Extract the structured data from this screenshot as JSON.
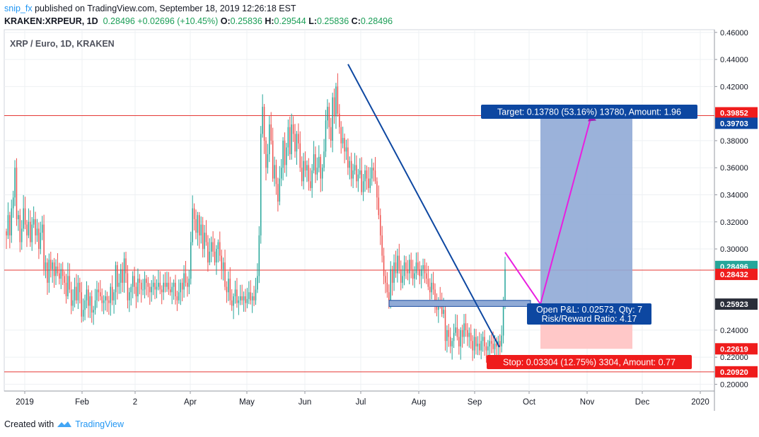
{
  "header": {
    "publisher": "snip_fx",
    "published_text": "published on TradingView.com, September 18, 2019 12:26:18 EST",
    "symbol": "KRAKEN:XRPEUR, 1D",
    "last": "0.28496",
    "change": "+0.02696 (+10.45%)",
    "o_label": "O:",
    "o_value": "0.25836",
    "h_label": "H:",
    "h_value": "0.29544",
    "l_label": "L:",
    "l_value": "0.25836",
    "c_label": "C:",
    "c_value": "0.28496"
  },
  "footer": {
    "created_with": "Created with",
    "brand": "TradingView"
  },
  "colors": {
    "up": "#26a69a",
    "down": "#ef5350",
    "hline": "#e53935",
    "trend": "#0d47a1",
    "projection": "#e91ee0",
    "target_zone": "#90aad6",
    "stop_zone": "#ffc8c8",
    "label_blue": "#0d47a1",
    "label_red": "#ef1c1c",
    "grid": "#eef0f3"
  },
  "chart_data": {
    "type": "candlestick",
    "title": "XRP / Euro, 1D, KRAKEN",
    "x_ticks": [
      "2019",
      "Feb",
      "2",
      "Apr",
      "May",
      "Jun",
      "Jul",
      "Aug",
      "Sep",
      "Oct",
      "Nov",
      "Dec",
      "2020"
    ],
    "y_ticks": [
      "0.46000",
      "0.44000",
      "0.42000",
      "0.38000",
      "0.36000",
      "0.34000",
      "0.32000",
      "0.30000",
      "0.24000",
      "0.22000",
      "0.20000"
    ],
    "ylim": [
      0.195,
      0.462
    ],
    "candles_close": [
      0.31,
      0.325,
      0.31,
      0.33,
      0.338,
      0.36,
      0.322,
      0.325,
      0.305,
      0.315,
      0.33,
      0.318,
      0.31,
      0.32,
      0.305,
      0.318,
      0.322,
      0.31,
      0.315,
      0.3,
      0.312,
      0.318,
      0.285,
      0.29,
      0.275,
      0.292,
      0.285,
      0.29,
      0.28,
      0.287,
      0.282,
      0.278,
      0.285,
      0.28,
      0.275,
      0.265,
      0.28,
      0.27,
      0.258,
      0.262,
      0.272,
      0.262,
      0.275,
      0.268,
      0.25,
      0.255,
      0.262,
      0.27,
      0.258,
      0.265,
      0.253,
      0.255,
      0.262,
      0.27,
      0.268,
      0.265,
      0.26,
      0.262,
      0.265,
      0.262,
      0.26,
      0.272,
      0.262,
      0.268,
      0.288,
      0.272,
      0.275,
      0.285,
      0.275,
      0.293,
      0.282,
      0.262,
      0.268,
      0.272,
      0.28,
      0.272,
      0.265,
      0.278,
      0.275,
      0.27,
      0.27,
      0.278,
      0.275,
      0.272,
      0.268,
      0.272,
      0.275,
      0.27,
      0.272,
      0.275,
      0.27,
      0.268,
      0.275,
      0.272,
      0.275,
      0.27,
      0.268,
      0.272,
      0.275,
      0.265,
      0.262,
      0.268,
      0.275,
      0.27,
      0.282,
      0.275,
      0.272,
      0.278,
      0.305,
      0.33,
      0.322,
      0.312,
      0.325,
      0.31,
      0.318,
      0.3,
      0.312,
      0.305,
      0.29,
      0.298,
      0.305,
      0.298,
      0.29,
      0.3,
      0.305,
      0.295,
      0.285,
      0.29,
      0.272,
      0.268,
      0.278,
      0.262,
      0.258,
      0.265,
      0.27,
      0.26,
      0.262,
      0.265,
      0.262,
      0.265,
      0.26,
      0.263,
      0.268,
      0.262,
      0.265,
      0.262,
      0.27,
      0.28,
      0.31,
      0.385,
      0.405,
      0.38,
      0.36,
      0.37,
      0.392,
      0.38,
      0.352,
      0.362,
      0.348,
      0.335,
      0.352,
      0.36,
      0.38,
      0.362,
      0.375,
      0.39,
      0.37,
      0.392,
      0.385,
      0.372,
      0.385,
      0.378,
      0.36,
      0.35,
      0.365,
      0.358,
      0.362,
      0.35,
      0.345,
      0.358,
      0.37,
      0.355,
      0.36,
      0.368,
      0.352,
      0.36,
      0.372,
      0.395,
      0.405,
      0.39,
      0.38,
      0.412,
      0.398,
      0.42,
      0.4,
      0.39,
      0.378,
      0.382,
      0.372,
      0.375,
      0.36,
      0.365,
      0.352,
      0.358,
      0.362,
      0.35,
      0.355,
      0.358,
      0.342,
      0.35,
      0.358,
      0.352,
      0.345,
      0.352,
      0.36,
      0.358,
      0.35,
      0.338,
      0.325,
      0.31,
      0.295,
      0.28,
      0.275,
      0.268,
      0.262,
      0.285,
      0.275,
      0.29,
      0.282,
      0.295,
      0.285,
      0.275,
      0.28,
      0.29,
      0.285,
      0.282,
      0.292,
      0.285,
      0.278,
      0.282,
      0.29,
      0.285,
      0.28,
      0.285,
      0.288,
      0.282,
      0.278,
      0.272,
      0.268,
      0.275,
      0.27,
      0.26,
      0.255,
      0.262,
      0.258,
      0.252,
      0.255,
      0.232,
      0.24,
      0.235,
      0.228,
      0.232,
      0.238,
      0.242,
      0.235,
      0.228,
      0.24,
      0.235,
      0.245,
      0.24,
      0.235,
      0.238,
      0.232,
      0.225,
      0.235,
      0.228,
      0.23,
      0.225,
      0.232,
      0.235,
      0.228,
      0.225,
      0.228,
      0.232,
      0.23,
      0.226,
      0.23,
      0.228,
      0.232,
      0.228,
      0.236,
      0.2585,
      0.28496
    ],
    "horizontal_lines": [
      0.39852,
      0.28432,
      0.2092
    ],
    "price_labels": [
      {
        "value": 0.39852,
        "text": "0.39852",
        "color": "red"
      },
      {
        "value": 0.39703,
        "text": "0.39703",
        "color": "blue"
      },
      {
        "value": 0.28496,
        "text": "0.28496",
        "color": "green"
      },
      {
        "value": 0.28432,
        "text": "0.28432",
        "color": "red"
      },
      {
        "value": 0.25923,
        "text": "0.25923",
        "color": "dark"
      },
      {
        "value": 0.22619,
        "text": "0.22619",
        "color": "red"
      },
      {
        "value": 0.2092,
        "text": "0.20920",
        "color": "red"
      }
    ],
    "position": {
      "entry": 0.25923,
      "target": 0.39703,
      "stop": 0.22619,
      "target_label": "Target: 0.13780 (53.16%) 13780, Amount: 1.96",
      "pnl_label": "Open P&L: 0.02573, Qty: 7",
      "rr_label": "Risk/Reward Ratio: 4.17",
      "stop_label": "Stop: 0.03304 (12.75%) 3304, Amount: 0.77"
    },
    "support_zone": [
      0.2575,
      0.262
    ]
  }
}
